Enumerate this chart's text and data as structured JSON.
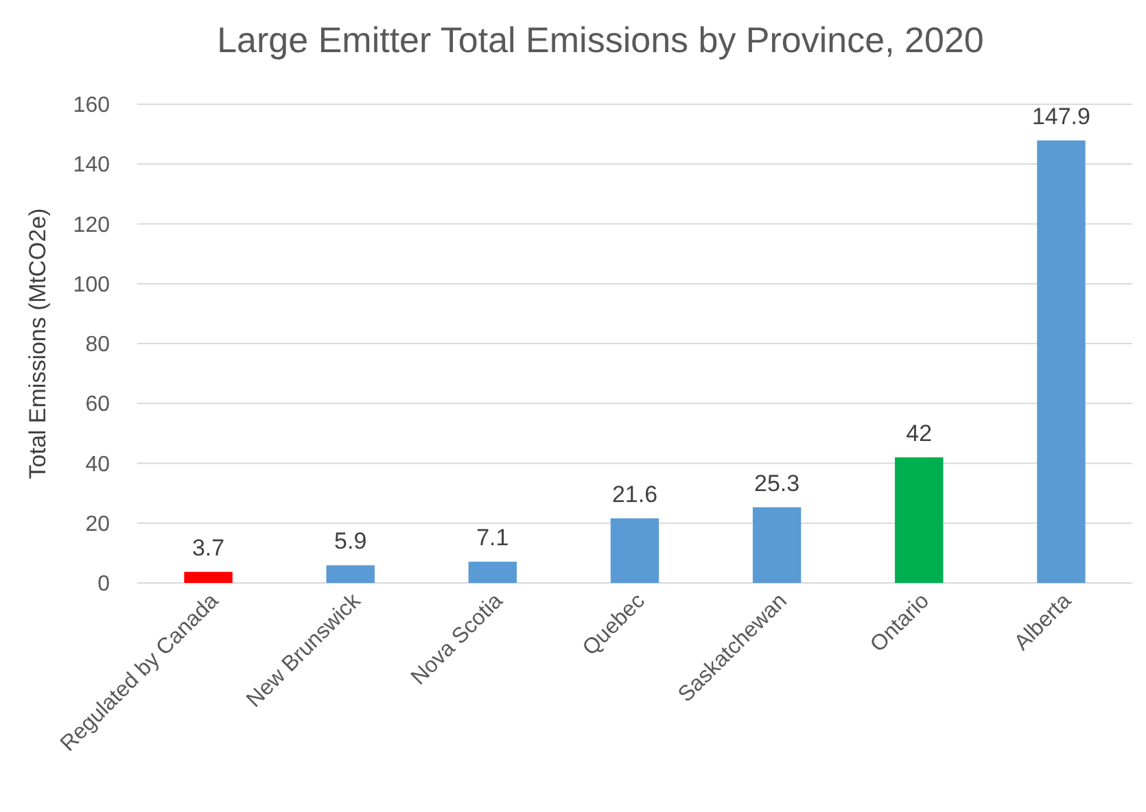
{
  "chart_data": {
    "type": "bar",
    "title": "Large Emitter Total Emissions by Province, 2020",
    "ylabel": "Total Emissions (MtCO2e)",
    "categories": [
      "Regulated by Canada",
      "New Brunswick",
      "Nova Scotia",
      "Quebec",
      "Saskatchewan",
      "Ontario",
      "Alberta"
    ],
    "values": [
      3.7,
      5.9,
      7.1,
      21.6,
      25.3,
      42,
      147.9
    ],
    "colors": [
      "#ff0000",
      "#5b9bd5",
      "#5b9bd5",
      "#5b9bd5",
      "#5b9bd5",
      "#00b050",
      "#5b9bd5"
    ],
    "ylim": [
      0,
      160
    ],
    "yticks": [
      0,
      20,
      40,
      60,
      80,
      100,
      120,
      140,
      160
    ],
    "grid": "y",
    "data_labels": true
  }
}
